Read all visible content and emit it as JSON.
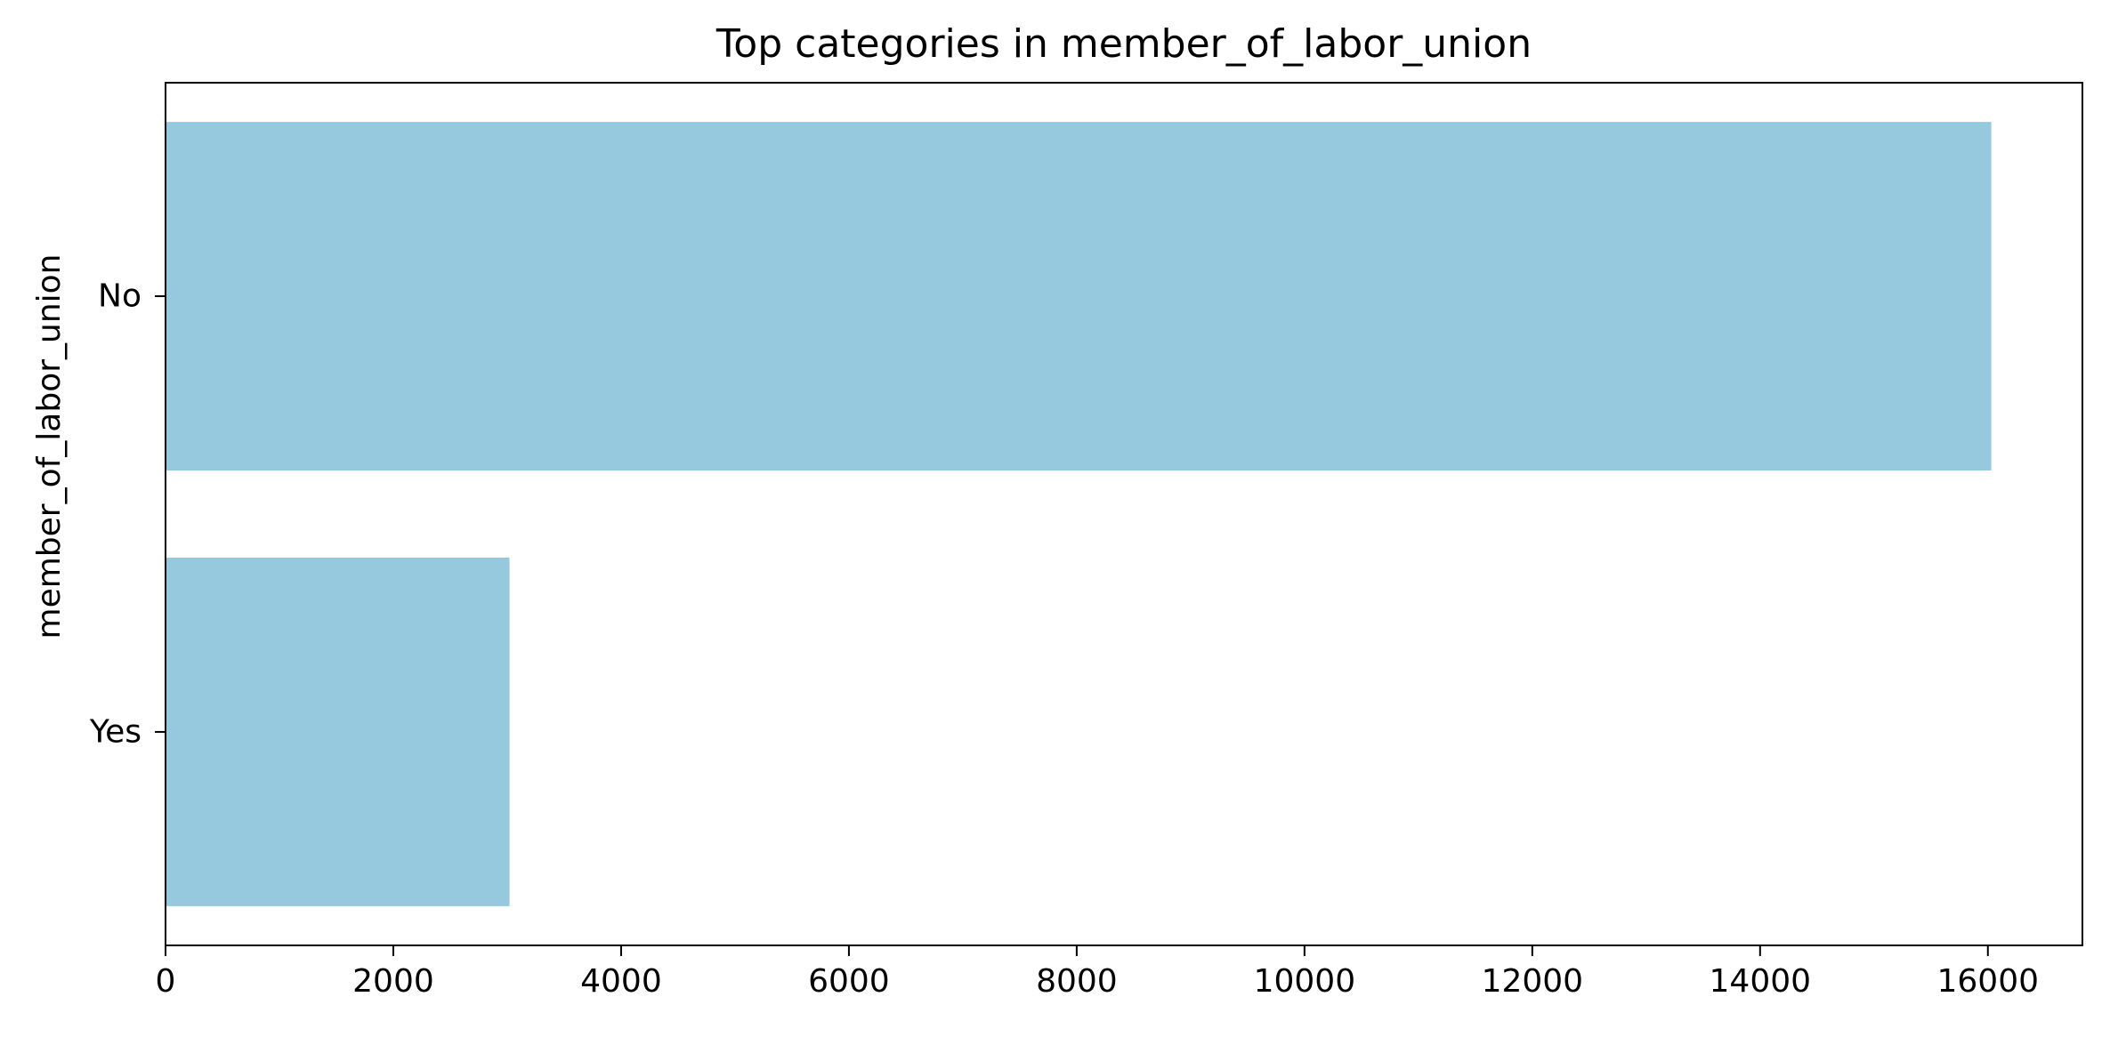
{
  "chart_data": {
    "type": "bar",
    "orientation": "horizontal",
    "title": "Top categories in member_of_labor_union",
    "xlabel": "",
    "ylabel": "member_of_labor_union",
    "categories": [
      "No",
      "Yes"
    ],
    "values": [
      16030,
      3020
    ],
    "xlim": [
      0,
      16830
    ],
    "xticks": [
      0,
      2000,
      4000,
      6000,
      8000,
      10000,
      12000,
      14000,
      16000
    ],
    "bar_color": "#96c9de",
    "grid": false,
    "legend": "none"
  }
}
